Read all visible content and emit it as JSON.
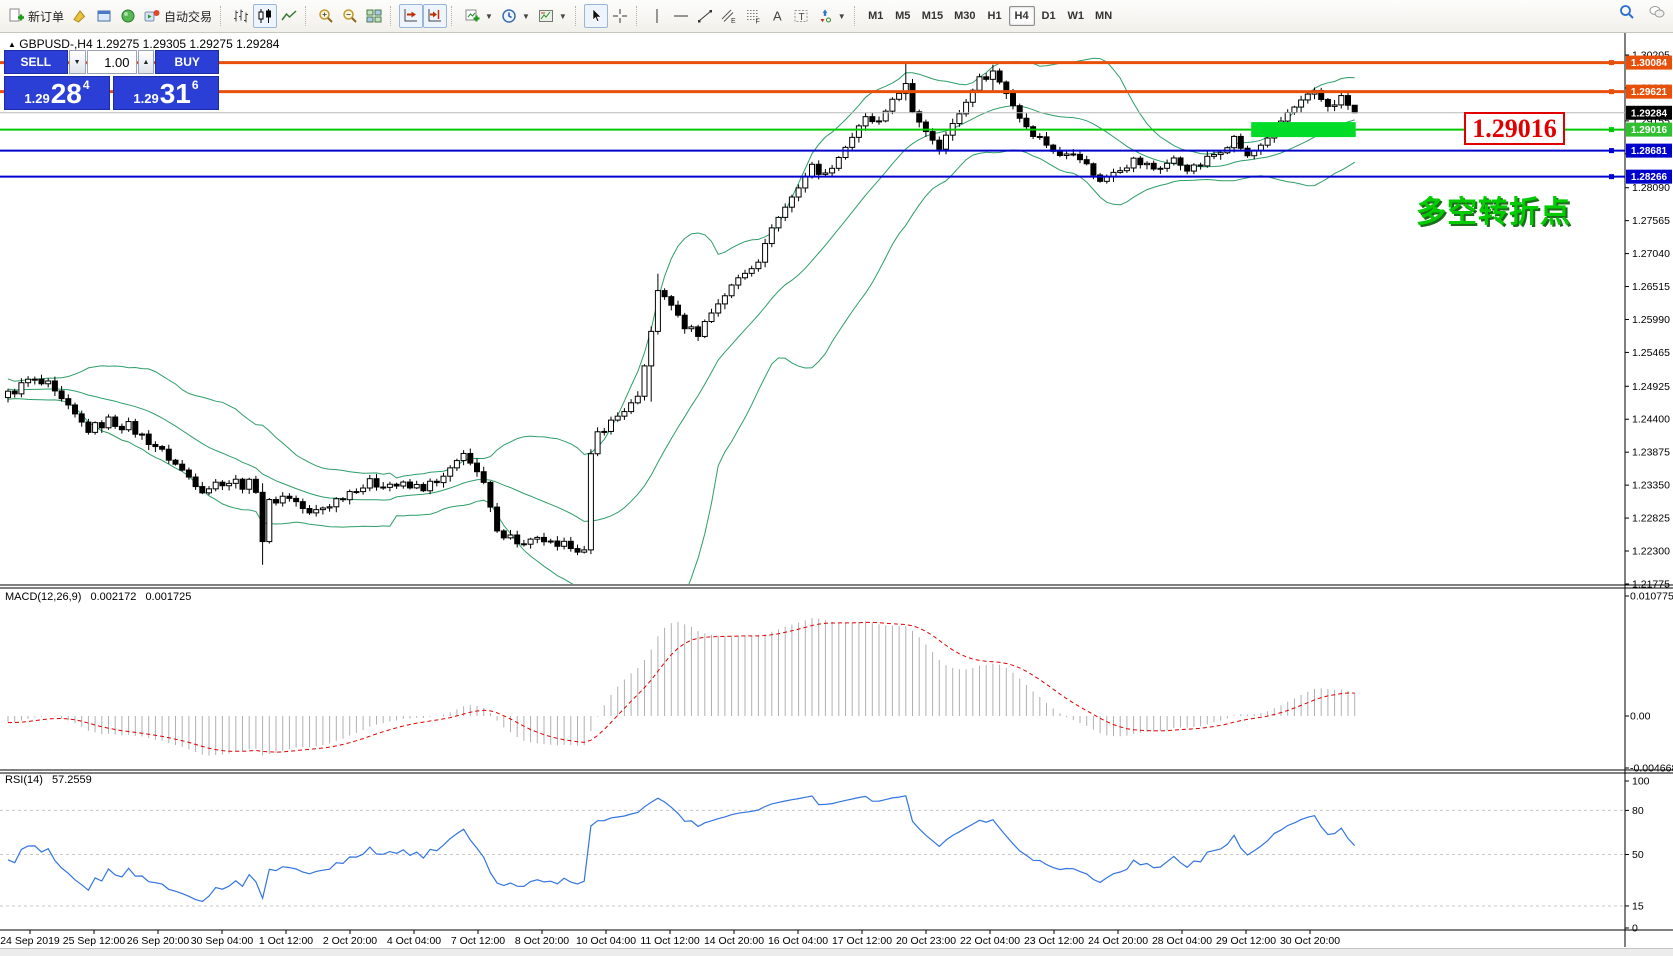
{
  "window": {
    "collapse_arrow": "▲",
    "symbol_title": "GBPUSD-,H4",
    "ohlc_text": "1.29275 1.29305 1.29275 1.29284"
  },
  "toolbar": {
    "new_order_label": "新订单",
    "autotrading_label": "自动交易",
    "timeframes": [
      "M1",
      "M5",
      "M15",
      "M30",
      "H1",
      "H4",
      "D1",
      "W1",
      "MN"
    ],
    "active_timeframe": "H4",
    "icon_letters": {
      "channel": "E",
      "fibonacci": "F",
      "text": "A",
      "text_label": "T"
    }
  },
  "trade_panel": {
    "sell_label": "SELL",
    "buy_label": "BUY",
    "volume": "1.00",
    "sell_price": {
      "prefix": "1.29",
      "big": "28",
      "sup": "4"
    },
    "buy_price": {
      "prefix": "1.29",
      "big": "31",
      "sup": "6"
    }
  },
  "indicator_labels": {
    "macd_name": "MACD(12,26,9)",
    "macd_value": "0.002172",
    "macd_signal_value": "0.001725",
    "rsi_name": "RSI(14)",
    "rsi_value": "57.2559"
  },
  "annotations": {
    "price_callout": "1.29016",
    "cn_note": "多空转折点"
  },
  "colors": {
    "panel_blue": "#2b3fd6",
    "orange_line": "#e8500a",
    "green_line": "#00c800",
    "green_zone": "#00dc28",
    "green_badge": "#2fbf2f",
    "blue_line": "#0000cc",
    "current_line": "#b8b8b8",
    "current_badge": "#000000",
    "red": "#e00000",
    "bollinger": "#2e9e68",
    "candle_outline": "#000000",
    "macd_histogram": "#b0b0b0",
    "macd_signal": "#e00000",
    "rsi_line": "#3375e0",
    "level_dash": "#c8c8c8"
  },
  "chart_data": {
    "type": "candlestick",
    "symbol": "GBPUSD",
    "period": "H4",
    "current_ohlc": {
      "open": 1.29275,
      "high": 1.29305,
      "low": 1.29275,
      "close": 1.29284
    },
    "bid": "1.29284",
    "ask": "1.29316",
    "price_axis_ticks": [
      "1.30205",
      "1.29680",
      "1.29155",
      "1.28630",
      "1.28090",
      "1.27565",
      "1.27040",
      "1.26515",
      "1.25990",
      "1.25465",
      "1.24925",
      "1.24400",
      "1.23875",
      "1.23350",
      "1.22825",
      "1.22300",
      "1.21775"
    ],
    "time_axis_labels": [
      "24 Sep 2019",
      "25 Sep 12:00",
      "26 Sep 20:00",
      "30 Sep 04:00",
      "1 Oct 12:00",
      "2 Oct 20:00",
      "4 Oct 04:00",
      "7 Oct 12:00",
      "8 Oct 20:00",
      "10 Oct 04:00",
      "11 Oct 12:00",
      "14 Oct 20:00",
      "16 Oct 04:00",
      "17 Oct 12:00",
      "20 Oct 23:00",
      "22 Oct 04:00",
      "23 Oct 12:00",
      "24 Oct 20:00",
      "28 Oct 04:00",
      "29 Oct 12:00",
      "30 Oct 20:00"
    ],
    "horizontal_lines": [
      {
        "price": 1.30084,
        "label": "1.30084",
        "color": "#e8500a",
        "width": 3,
        "badge": "#e8500a",
        "marker": true
      },
      {
        "price": 1.29621,
        "label": "1.29621",
        "color": "#e8500a",
        "width": 3,
        "badge": "#e8500a",
        "marker": true
      },
      {
        "price": 1.29284,
        "label": "1.29284",
        "color": "#b8b8b8",
        "width": 1,
        "badge": "#000000",
        "marker": false
      },
      {
        "price": 1.29016,
        "label": "1.29016",
        "color": "#00c800",
        "width": 2,
        "badge": "#2fbf2f",
        "marker": true
      },
      {
        "price": 1.28681,
        "label": "1.28681",
        "color": "#0000cc",
        "width": 2,
        "badge": "#0000cc",
        "marker": true
      },
      {
        "price": 1.28266,
        "label": "1.28266",
        "color": "#0000cc",
        "width": 2,
        "badge": "#0000cc",
        "marker": true
      }
    ],
    "highlight_zone": {
      "price": 1.29016,
      "start_index": 186,
      "end_index": 201
    },
    "bollinger": {
      "period": 20,
      "deviation": 2
    },
    "macd": {
      "fast": 12,
      "slow": 26,
      "signal": 9,
      "axis_top": 0.010775,
      "axis_zero": 0.0,
      "axis_bottom": -0.004668,
      "axis_labels": [
        "0.010775",
        "0.00",
        "-0.004668"
      ]
    },
    "rsi": {
      "period": 14,
      "levels": [
        80,
        50,
        15
      ],
      "axis_labels": [
        "100",
        "80",
        "50",
        "15",
        "0"
      ]
    },
    "candle_keyframes": [
      [
        -34,
        1.252
      ],
      [
        -12,
        1.249
      ],
      [
        0,
        1.2478
      ],
      [
        3,
        1.2502
      ],
      [
        6,
        1.2492
      ],
      [
        9,
        1.2458
      ],
      [
        12,
        1.2422
      ],
      [
        15,
        1.2438
      ],
      [
        18,
        1.2428
      ],
      [
        22,
        1.2398
      ],
      [
        26,
        1.2358
      ],
      [
        29,
        1.2328
      ],
      [
        32,
        1.2342
      ],
      [
        35,
        1.2338
      ],
      [
        37,
        1.2332
      ],
      [
        38,
        1.2245
      ],
      [
        39,
        1.2312
      ],
      [
        42,
        1.2318
      ],
      [
        45,
        1.2288
      ],
      [
        48,
        1.2305
      ],
      [
        52,
        1.2332
      ],
      [
        56,
        1.234
      ],
      [
        60,
        1.233
      ],
      [
        64,
        1.2336
      ],
      [
        66,
        1.2358
      ],
      [
        68,
        1.2388
      ],
      [
        69,
        1.237
      ],
      [
        71,
        1.2338
      ],
      [
        72,
        1.23
      ],
      [
        73,
        1.2262
      ],
      [
        75,
        1.2252
      ],
      [
        77,
        1.2238
      ],
      [
        80,
        1.2248
      ],
      [
        82,
        1.2232
      ],
      [
        84,
        1.2242
      ],
      [
        86,
        1.2228
      ],
      [
        87,
        1.2385
      ],
      [
        88,
        1.242
      ],
      [
        90,
        1.2435
      ],
      [
        92,
        1.2455
      ],
      [
        94,
        1.247
      ],
      [
        96,
        1.258
      ],
      [
        97,
        1.2645
      ],
      [
        99,
        1.2625
      ],
      [
        101,
        1.2585
      ],
      [
        103,
        1.258
      ],
      [
        106,
        1.2625
      ],
      [
        109,
        1.2665
      ],
      [
        112,
        1.2695
      ],
      [
        114,
        1.2745
      ],
      [
        116,
        1.2778
      ],
      [
        118,
        1.281
      ],
      [
        120,
        1.2845
      ],
      [
        122,
        1.2828
      ],
      [
        124,
        1.2858
      ],
      [
        126,
        1.289
      ],
      [
        128,
        1.292
      ],
      [
        130,
        1.291
      ],
      [
        132,
        1.295
      ],
      [
        134,
        1.2975
      ],
      [
        135,
        1.293
      ],
      [
        137,
        1.29
      ],
      [
        139,
        1.2875
      ],
      [
        141,
        1.291
      ],
      [
        143,
        1.2945
      ],
      [
        145,
        1.2985
      ],
      [
        147,
        1.2995
      ],
      [
        149,
        1.296
      ],
      [
        151,
        1.292
      ],
      [
        153,
        1.2895
      ],
      [
        155,
        1.288
      ],
      [
        157,
        1.2858
      ],
      [
        159,
        1.287
      ],
      [
        161,
        1.2845
      ],
      [
        163,
        1.2818
      ],
      [
        165,
        1.2838
      ],
      [
        168,
        1.2852
      ],
      [
        171,
        1.284
      ],
      [
        174,
        1.2852
      ],
      [
        177,
        1.2838
      ],
      [
        180,
        1.2862
      ],
      [
        183,
        1.2888
      ],
      [
        185,
        1.2858
      ],
      [
        187,
        1.2878
      ],
      [
        189,
        1.2902
      ],
      [
        191,
        1.2928
      ],
      [
        193,
        1.2945
      ],
      [
        195,
        1.2958
      ],
      [
        197,
        1.294
      ],
      [
        199,
        1.2952
      ],
      [
        201,
        1.29284
      ]
    ],
    "candle_overrides": {
      "38": [
        1.2332,
        1.2338,
        1.2208,
        1.2245
      ],
      "87": [
        1.223,
        1.2392,
        1.2225,
        1.2385
      ],
      "96": [
        1.2472,
        1.2588,
        1.2468,
        1.258
      ],
      "97": [
        1.258,
        1.2672,
        1.2575,
        1.2645
      ],
      "134": [
        1.2952,
        1.30084,
        1.2948,
        1.2975
      ],
      "147": [
        1.2968,
        1.3005,
        1.2962,
        1.2995
      ],
      "201": [
        1.29275,
        1.29305,
        1.29275,
        1.29284
      ]
    }
  }
}
